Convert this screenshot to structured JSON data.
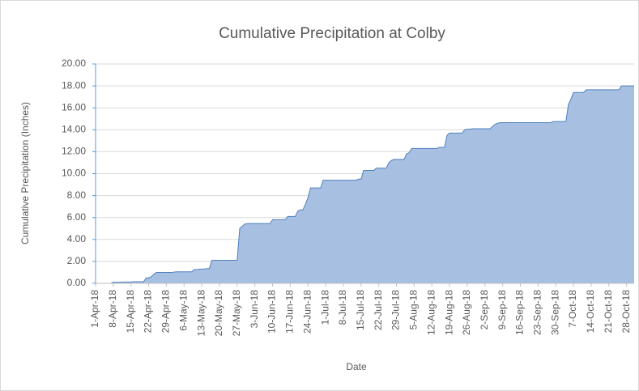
{
  "chart_data": {
    "type": "area",
    "title": "Cumulative Precipitation at Colby",
    "x_label": "Date",
    "y_label": "Cumulative Precipitation (Inches)",
    "color": "#4f81bd",
    "fill": "#a7c0e2",
    "grid": true,
    "ylim": [
      0,
      20
    ],
    "yticks": [
      {
        "value": 0,
        "label": "0.00"
      },
      {
        "value": 2,
        "label": "2.00"
      },
      {
        "value": 4,
        "label": "4.00"
      },
      {
        "value": 6,
        "label": "6.00"
      },
      {
        "value": 8,
        "label": "8.00"
      },
      {
        "value": 10,
        "label": "10.00"
      },
      {
        "value": 12,
        "label": "12.00"
      },
      {
        "value": 14,
        "label": "14.00"
      },
      {
        "value": 16,
        "label": "16.00"
      },
      {
        "value": 18,
        "label": "18.00"
      },
      {
        "value": 20,
        "label": "20.00"
      }
    ],
    "categories": [
      "1-Apr-18",
      null,
      null,
      null,
      null,
      null,
      null,
      "8-Apr-18",
      null,
      null,
      null,
      null,
      null,
      null,
      "15-Apr-18",
      null,
      null,
      null,
      null,
      null,
      null,
      "22-Apr-18",
      null,
      null,
      null,
      null,
      null,
      null,
      "29-Apr-18",
      null,
      null,
      null,
      null,
      null,
      null,
      "6-May-18",
      null,
      null,
      null,
      null,
      null,
      null,
      "13-May-18",
      null,
      null,
      null,
      null,
      null,
      null,
      "20-May-18",
      null,
      null,
      null,
      null,
      null,
      null,
      "27-May-18",
      null,
      null,
      null,
      null,
      null,
      null,
      "3-Jun-18",
      null,
      null,
      null,
      null,
      null,
      null,
      "10-Jun-18",
      null,
      null,
      null,
      null,
      null,
      null,
      "17-Jun-18",
      null,
      null,
      null,
      null,
      null,
      null,
      "24-Jun-18",
      null,
      null,
      null,
      null,
      null,
      null,
      "1-Jul-18",
      null,
      null,
      null,
      null,
      null,
      null,
      "8-Jul-18",
      null,
      null,
      null,
      null,
      null,
      null,
      "15-Jul-18",
      null,
      null,
      null,
      null,
      null,
      null,
      "22-Jul-18",
      null,
      null,
      null,
      null,
      null,
      null,
      "29-Jul-18",
      null,
      null,
      null,
      null,
      null,
      null,
      "5-Aug-18",
      null,
      null,
      null,
      null,
      null,
      null,
      "12-Aug-18",
      null,
      null,
      null,
      null,
      null,
      null,
      "19-Aug-18",
      null,
      null,
      null,
      null,
      null,
      null,
      "26-Aug-18",
      null,
      null,
      null,
      null,
      null,
      null,
      "2-Sep-18",
      null,
      null,
      null,
      null,
      null,
      null,
      "9-Sep-18",
      null,
      null,
      null,
      null,
      null,
      null,
      "16-Sep-18",
      null,
      null,
      null,
      null,
      null,
      null,
      "23-Sep-18",
      null,
      null,
      null,
      null,
      null,
      null,
      "30-Sep-18",
      null,
      null,
      null,
      null,
      null,
      null,
      "7-Oct-18",
      null,
      null,
      null,
      null,
      null,
      null,
      "14-Oct-18",
      null,
      null,
      null,
      null,
      null,
      null,
      "21-Oct-18",
      null,
      null,
      null,
      null,
      null,
      null,
      "28-Oct-18",
      null,
      null,
      null
    ],
    "values": [
      0,
      0,
      0,
      0,
      0,
      0,
      0,
      0.1,
      0.1,
      0.1,
      0.1,
      0.12,
      0.12,
      0.12,
      0.12,
      0.15,
      0.15,
      0.15,
      0.15,
      0.15,
      0.5,
      0.5,
      0.6,
      0.8,
      1.0,
      1.0,
      1.0,
      1.0,
      1.0,
      1.0,
      1.0,
      1.02,
      1.05,
      1.05,
      1.05,
      1.05,
      1.05,
      1.05,
      1.05,
      1.25,
      1.25,
      1.3,
      1.3,
      1.3,
      1.35,
      1.35,
      2.1,
      2.1,
      2.1,
      2.1,
      2.1,
      2.1,
      2.1,
      2.1,
      2.1,
      2.1,
      2.1,
      5.0,
      5.2,
      5.4,
      5.45,
      5.45,
      5.45,
      5.45,
      5.45,
      5.45,
      5.45,
      5.45,
      5.45,
      5.45,
      5.8,
      5.8,
      5.8,
      5.8,
      5.8,
      5.8,
      6.1,
      6.1,
      6.1,
      6.1,
      6.6,
      6.7,
      6.7,
      7.2,
      7.8,
      8.7,
      8.7,
      8.7,
      8.7,
      8.7,
      9.4,
      9.4,
      9.4,
      9.4,
      9.4,
      9.4,
      9.4,
      9.4,
      9.4,
      9.4,
      9.4,
      9.4,
      9.4,
      9.4,
      9.5,
      9.5,
      10.3,
      10.3,
      10.3,
      10.3,
      10.3,
      10.5,
      10.5,
      10.5,
      10.5,
      10.5,
      11.0,
      11.2,
      11.3,
      11.3,
      11.3,
      11.3,
      11.3,
      11.8,
      11.9,
      12.3,
      12.3,
      12.3,
      12.3,
      12.3,
      12.3,
      12.3,
      12.3,
      12.3,
      12.3,
      12.3,
      12.4,
      12.4,
      12.4,
      13.5,
      13.7,
      13.7,
      13.7,
      13.7,
      13.7,
      13.7,
      14.0,
      14.05,
      14.05,
      14.1,
      14.1,
      14.1,
      14.1,
      14.1,
      14.1,
      14.1,
      14.1,
      14.3,
      14.5,
      14.6,
      14.65,
      14.65,
      14.65,
      14.65,
      14.65,
      14.65,
      14.65,
      14.65,
      14.65,
      14.65,
      14.65,
      14.65,
      14.65,
      14.65,
      14.65,
      14.65,
      14.65,
      14.65,
      14.65,
      14.65,
      14.65,
      14.75,
      14.75,
      14.75,
      14.75,
      14.75,
      14.75,
      16.3,
      16.8,
      17.4,
      17.4,
      17.4,
      17.4,
      17.4,
      17.65,
      17.65,
      17.65,
      17.65,
      17.65,
      17.65,
      17.65,
      17.65,
      17.65,
      17.65,
      17.65,
      17.65,
      17.65,
      17.65,
      18.0,
      18.0,
      18.0,
      18.0,
      18.0,
      18.0
    ]
  }
}
